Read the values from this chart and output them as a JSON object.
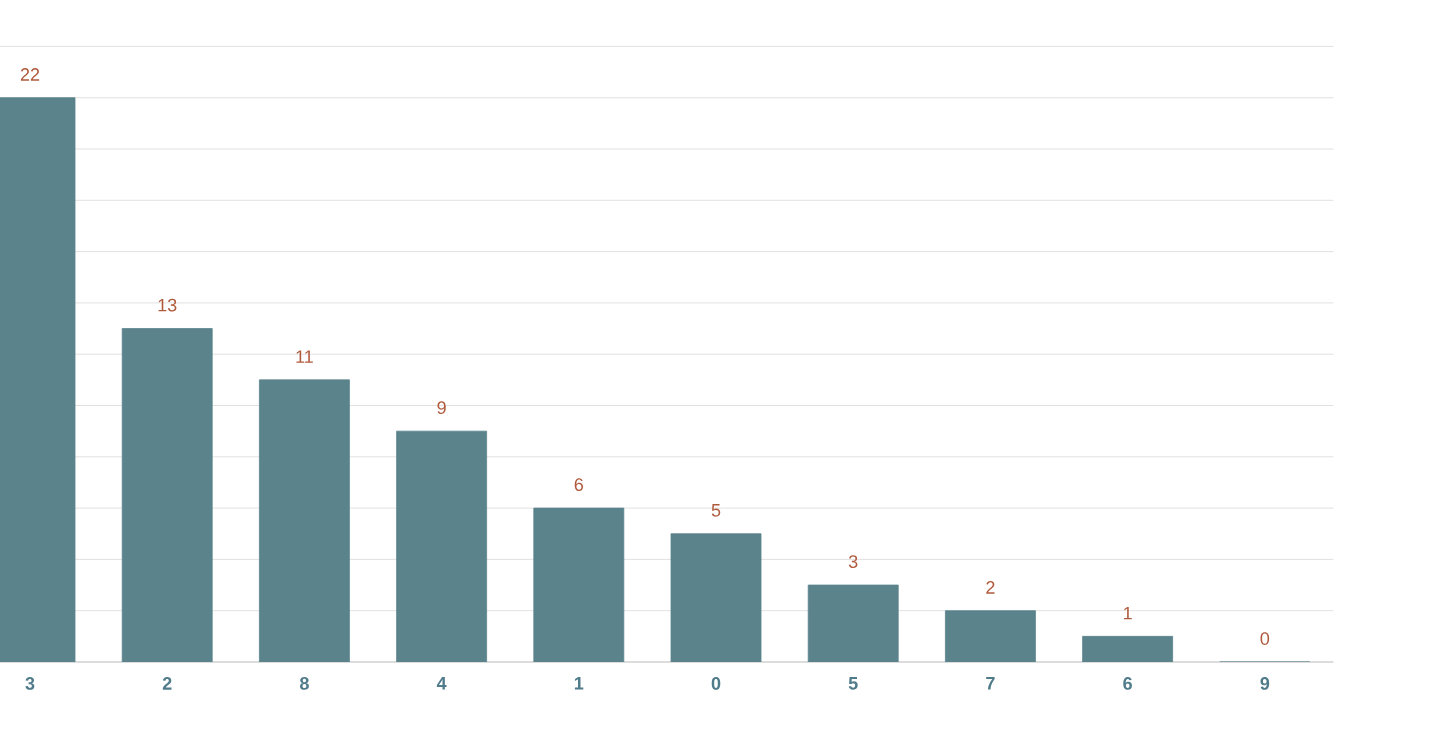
{
  "chart_data": {
    "type": "bar",
    "categories": [
      "3",
      "2",
      "8",
      "4",
      "1",
      "0",
      "5",
      "7",
      "6",
      "9"
    ],
    "values": [
      22,
      13,
      11,
      9,
      6,
      5,
      3,
      2,
      1,
      0
    ],
    "color": "#5b838c",
    "grid": "y",
    "data_labels": true,
    "tick_labels": "x"
  }
}
